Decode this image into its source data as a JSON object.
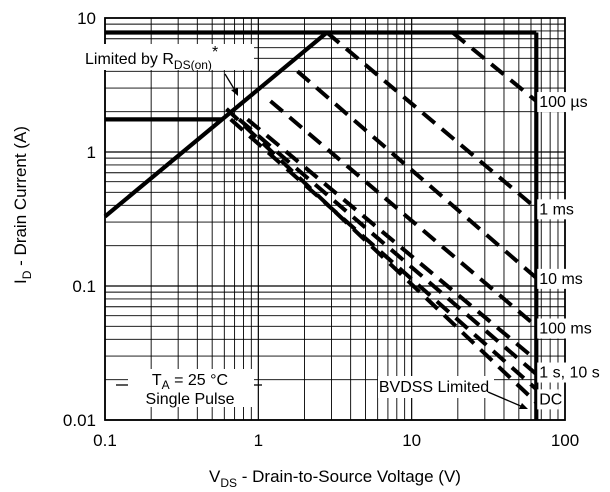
{
  "chart_data": {
    "type": "line",
    "x_scale": "log",
    "y_scale": "log",
    "xlim": [
      0.1,
      100
    ],
    "ylim": [
      0.01,
      10
    ],
    "grid": true,
    "x_ticks": [
      "0.1",
      "1",
      "10",
      "100"
    ],
    "y_ticks": [
      "10",
      "1",
      "0.1",
      "0.01"
    ],
    "xlabel": {
      "main": "V",
      "sub": "DS",
      "rest": " - Drain-to-Source Voltage (V)"
    },
    "ylabel": {
      "main": "I",
      "sub": "D",
      "rest": " - Drain Current (A)"
    },
    "series": [
      {
        "name": "Limited by RDS(on)",
        "style": "solid",
        "points": [
          [
            0.1,
            0.33
          ],
          [
            2.8,
            7.8
          ]
        ]
      },
      {
        "name": "",
        "style": "solid",
        "points": [
          [
            0.1,
            1.75
          ],
          [
            0.58,
            1.75
          ]
        ]
      },
      {
        "name": "",
        "style": "solid",
        "points": [
          [
            0.1,
            7.8
          ],
          [
            65,
            7.8
          ]
        ]
      },
      {
        "name": "BVDSS Limited",
        "style": "solid",
        "points": [
          [
            65,
            7.8
          ],
          [
            65,
            0.01
          ]
        ]
      },
      {
        "name": "100 µs",
        "style": "dashed",
        "points": [
          [
            18.5,
            7.8
          ],
          [
            65,
            2.4
          ]
        ]
      },
      {
        "name": "1 ms",
        "style": "dashed",
        "points": [
          [
            2.8,
            7.8
          ],
          [
            65,
            0.38
          ]
        ]
      },
      {
        "name": "10 ms",
        "style": "dashed",
        "points": [
          [
            1.8,
            4.0
          ],
          [
            65,
            0.115
          ]
        ]
      },
      {
        "name": "100 ms",
        "style": "dashed",
        "points": [
          [
            1.2,
            2.4
          ],
          [
            65,
            0.05
          ]
        ]
      },
      {
        "name": "1 s",
        "style": "dashed",
        "points": [
          [
            0.85,
            1.75
          ],
          [
            65,
            0.028
          ]
        ]
      },
      {
        "name": "10 s",
        "style": "dashed",
        "points": [
          [
            0.75,
            1.75
          ],
          [
            65,
            0.022
          ]
        ]
      },
      {
        "name": "DC",
        "style": "dashed",
        "points": [
          [
            0.66,
            1.75
          ],
          [
            65,
            0.017
          ]
        ]
      },
      {
        "name": "",
        "style": "dashed",
        "points": [
          [
            0.62,
            2.1
          ],
          [
            65,
            0.0135
          ]
        ]
      }
    ],
    "curve_labels": [
      {
        "text": "100 µs",
        "x": 70,
        "y": 2.4
      },
      {
        "text": "1 ms",
        "x": 70,
        "y": 0.38
      },
      {
        "text": "10 ms",
        "x": 70,
        "y": 0.115
      },
      {
        "text": "100 ms",
        "x": 70,
        "y": 0.049
      },
      {
        "text": "1 s, 10 s",
        "x": 70,
        "y": 0.023
      },
      {
        "text": "DC",
        "x": 70,
        "y": 0.0145
      }
    ],
    "annotations": {
      "rds": {
        "main": "Limited by R",
        "sub": "DS(on)",
        "star": "*"
      },
      "ta": {
        "main": "T",
        "sub": "A",
        "rest": " = 25 °C"
      },
      "single_pulse": "Single Pulse",
      "bvdss": "BVDSS Limited"
    }
  }
}
